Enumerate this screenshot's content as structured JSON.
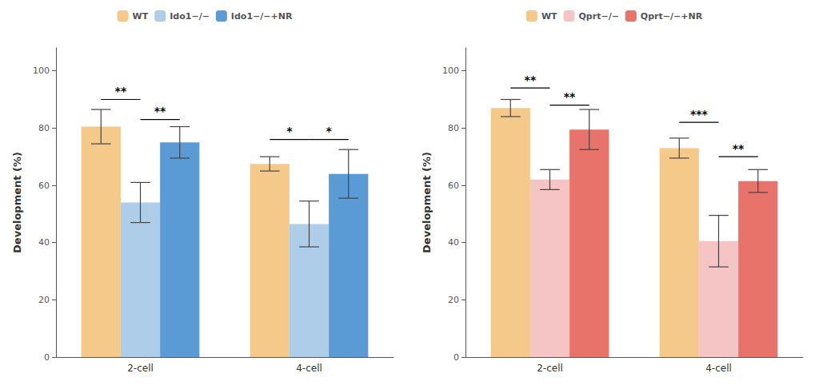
{
  "chart_data": [
    {
      "type": "bar",
      "categories": [
        "2-cell",
        "4-cell"
      ],
      "series": [
        {
          "name": "WT",
          "color": "#F5C98A",
          "values": [
            80.5,
            67.5
          ],
          "errors": [
            6.0,
            2.5
          ]
        },
        {
          "name": "Ido1−/−",
          "color": "#AECDE8",
          "values": [
            54.0,
            46.5
          ],
          "errors": [
            7.0,
            8.0
          ]
        },
        {
          "name": "Ido1−/−+NR",
          "color": "#5B9BD5",
          "values": [
            75.0,
            64.0
          ],
          "errors": [
            5.5,
            8.5
          ]
        }
      ],
      "ylabel": "Development (%)",
      "ylim": [
        0,
        108
      ],
      "yticks": [
        0,
        20,
        40,
        60,
        80,
        100
      ],
      "grid": false,
      "legend": "top",
      "brackets": [
        {
          "category": "2-cell",
          "from": "WT",
          "to": "Ido1−/−",
          "y": 90,
          "text_y": 91,
          "text": "**"
        },
        {
          "category": "2-cell",
          "from": "Ido1−/−",
          "to": "Ido1−/−+NR",
          "y": 83,
          "text_y": 84,
          "text": "**"
        },
        {
          "category": "4-cell",
          "from": "WT",
          "to": "Ido1−/−",
          "y": 76,
          "text_y": 77,
          "text": "*"
        },
        {
          "category": "4-cell",
          "from": "Ido1−/−",
          "to": "Ido1−/−+NR",
          "y": 76,
          "text_y": 77,
          "text": "*"
        }
      ]
    },
    {
      "type": "bar",
      "categories": [
        "2-cell",
        "4-cell"
      ],
      "series": [
        {
          "name": "WT",
          "color": "#F5C98A",
          "values": [
            87.0,
            73.0
          ],
          "errors": [
            3.0,
            3.5
          ]
        },
        {
          "name": "Qprt−/−",
          "color": "#F5C4C4",
          "values": [
            62.0,
            40.5
          ],
          "errors": [
            3.5,
            9.0
          ]
        },
        {
          "name": "Qprt−/−+NR",
          "color": "#E8736A",
          "values": [
            79.5,
            61.5
          ],
          "errors": [
            7.0,
            4.0
          ]
        }
      ],
      "ylabel": "Development (%)",
      "ylim": [
        0,
        108
      ],
      "yticks": [
        0,
        20,
        40,
        60,
        80,
        100
      ],
      "grid": false,
      "legend": "top",
      "brackets": [
        {
          "category": "2-cell",
          "from": "WT",
          "to": "Qprt−/−",
          "y": 94,
          "text_y": 95,
          "text": "**"
        },
        {
          "category": "2-cell",
          "from": "Qprt−/−",
          "to": "Qprt−/−+NR",
          "y": 88,
          "text_y": 89,
          "text": "**"
        },
        {
          "category": "4-cell",
          "from": "WT",
          "to": "Qprt−/−",
          "y": 82,
          "text_y": 83,
          "text": "***"
        },
        {
          "category": "4-cell",
          "from": "Qprt−/−",
          "to": "Qprt−/−+NR",
          "y": 70,
          "text_y": 71,
          "text": "**"
        }
      ]
    }
  ]
}
